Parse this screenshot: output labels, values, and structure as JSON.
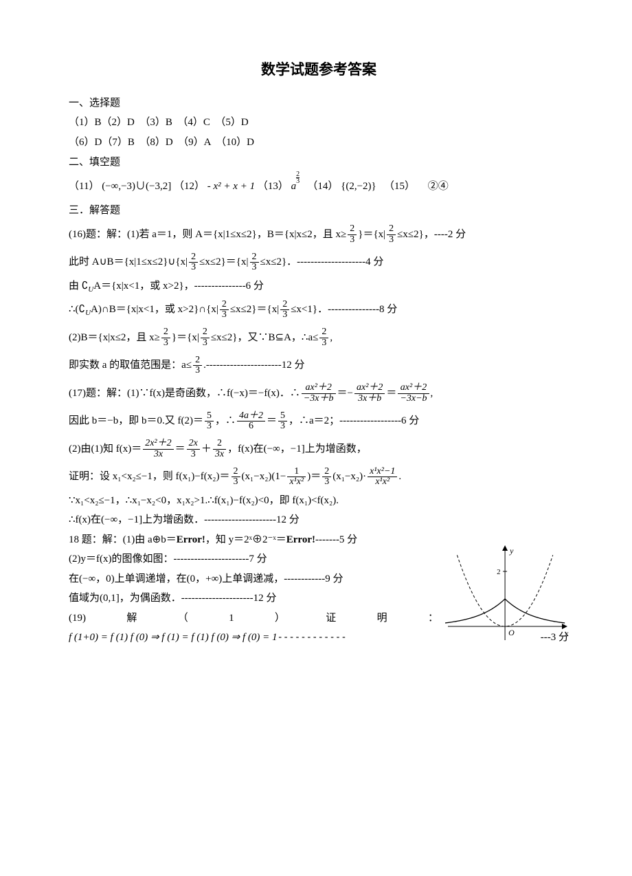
{
  "title": "数学试题参考答案",
  "section1_header": "一、选择题",
  "mc_line1": "（1）B（2）D　（3）B　（4）C　（5）D",
  "mc_line2": "（6）D（7）B　（8）D　（9）A　（10）D",
  "section2_header": "二、填空题",
  "fill_prefix": "（11）",
  "fill_11": "(−∞,−3)∪(−3,2]",
  "fill_12_prefix": "（12）",
  "fill_12": "- x² + x + 1",
  "fill_13_prefix": "（13）",
  "fill_13_base": "a",
  "fill_13_exp_num": "2",
  "fill_13_exp_den": "3",
  "fill_14_prefix": "（14）",
  "fill_14": "{(2,−2)}",
  "fill_15_prefix": "（15）",
  "fill_15": "②④",
  "section3_header": "三．解答题",
  "q16_1a": "(16)题：解：(1)若 a＝1，则 A＝{x|1≤x≤2}，B＝{x|x≤2，且 x≥",
  "q16_1b": "}＝{x|",
  "q16_1c": "≤x≤2}，----2 分",
  "q16_2a": "此时 A∪B＝{x|1≤x≤2}∪{x|",
  "q16_2b": "≤x≤2}＝{x|",
  "q16_2c": "≤x≤2}．--------------------4 分",
  "q16_3a": "由 ∁",
  "q16_3a2": "A＝{x|x<1，或 x>2}，---------------6 分",
  "q16_3_sub": "U",
  "q16_4a": "∴(∁",
  "q16_4b": "A)∩B＝{x|x<1，或 x>2}∩{x|",
  "q16_4c": "≤x≤2}＝{x|",
  "q16_4d": "≤x<1}．---------------8 分",
  "q16_5a": "(2)B＝{x|x≤2，且 x≥",
  "q16_5b": "}＝{x|",
  "q16_5c": "≤x≤2}，又∵B⊆A，∴a≤",
  "q16_5d": ",",
  "q16_6a": "即实数 a 的取值范围是：a≤",
  "q16_6b": ".----------------------12 分",
  "frac23_num": "2",
  "frac23_den": "3",
  "q17_1a": "(17)题：解：(1)∵f(x)是奇函数，∴f(−x)＝−f(x)．∴",
  "q17_1_eq1_num": "ax²＋2",
  "q17_1_eq1_den": "−3x＋b",
  "q17_1b": "＝−",
  "q17_1_eq2_num": "ax²＋2",
  "q17_1_eq2_den": "3x＋b",
  "q17_1c": "＝",
  "q17_1_eq3_num": "ax²＋2",
  "q17_1_eq3_den": "−3x−b",
  "q17_1d": ",",
  "q17_2a": "因此 b＝−b，即 b＝0.又 f(2)＝",
  "q17_2_f1num": "5",
  "q17_2_f1den": "3",
  "q17_2b": "，∴",
  "q17_2_f2num": "4a＋2",
  "q17_2_f2den": "6",
  "q17_2c": "＝",
  "q17_2_f3num": "5",
  "q17_2_f3den": "3",
  "q17_2d": "，∴a＝2；------------------6 分",
  "q17_3a": "(2)由(1)知 f(x)＝",
  "q17_3_f1num": "2x²＋2",
  "q17_3_f1den": "3x",
  "q17_3b": "＝",
  "q17_3_f2num": "2x",
  "q17_3_f2den": "3",
  "q17_3c": "＋",
  "q17_3_f3num": "2",
  "q17_3_f3den": "3x",
  "q17_3d": "，f(x)在(−∞，−1]上为增函数，",
  "q17_4a": "证明：设 x₁<x₂≤−1，则 f(x₁)−f(x₂)＝",
  "q17_4_f1num": "2",
  "q17_4_f1den": "3",
  "q17_4b": "(x₁−x₂)(1−",
  "q17_4_f2num": "1",
  "q17_4_f2den": "x¹x²",
  "q17_4c": ")＝",
  "q17_4_f3num": "2",
  "q17_4_f3den": "3",
  "q17_4d": "(x₁−x₂)·",
  "q17_4_f4num": "x¹x²−1",
  "q17_4_f4den": "x¹x²",
  "q17_4e": ".",
  "q17_5": "∵x₁<x₂≤−1，∴x₁−x₂<0，x₁x₂>1.∴f(x₁)−f(x₂)<0，即 f(x₁)<f(x₂).",
  "q17_6": "∴f(x)在(−∞，−1]上为增函数．---------------------12 分",
  "q18_1a": "18 题：解：(1)由 a⊕b＝",
  "q18_err1": "Error!",
  "q18_1b": "，知 y＝2ˣ⊕2⁻ˣ＝",
  "q18_err2": "Error!",
  "q18_1c": "-------5 分",
  "q18_2": "(2)y＝f(x)的图像如图：----------------------7 分",
  "q18_3": "在(−∞，0)上单调递增，在(0，+∞)上单调递减，------------9 分",
  "q18_4": "值域为(0,1]，为偶函数．---------------------12 分",
  "q19_labels": [
    "(19)",
    "解",
    "（",
    "1",
    "）",
    "证",
    "明",
    "："
  ],
  "q19_eq": "f (1+0) = f (1) f (0) ⇒ f (1) = f (1) f (0) ⇒ f (0) = 1",
  "q19_dash": "------------",
  "q19_score": "---3 分",
  "figure": {
    "x_label": "x",
    "y_label": "y",
    "y_tick_label": "2",
    "origin_label": "O",
    "axis_color": "#000000",
    "dashed_curve_color": "#000000",
    "solid_curve_color": "#000000",
    "x_range": [
      -3,
      3.2
    ],
    "y_range": [
      -0.5,
      3
    ]
  }
}
